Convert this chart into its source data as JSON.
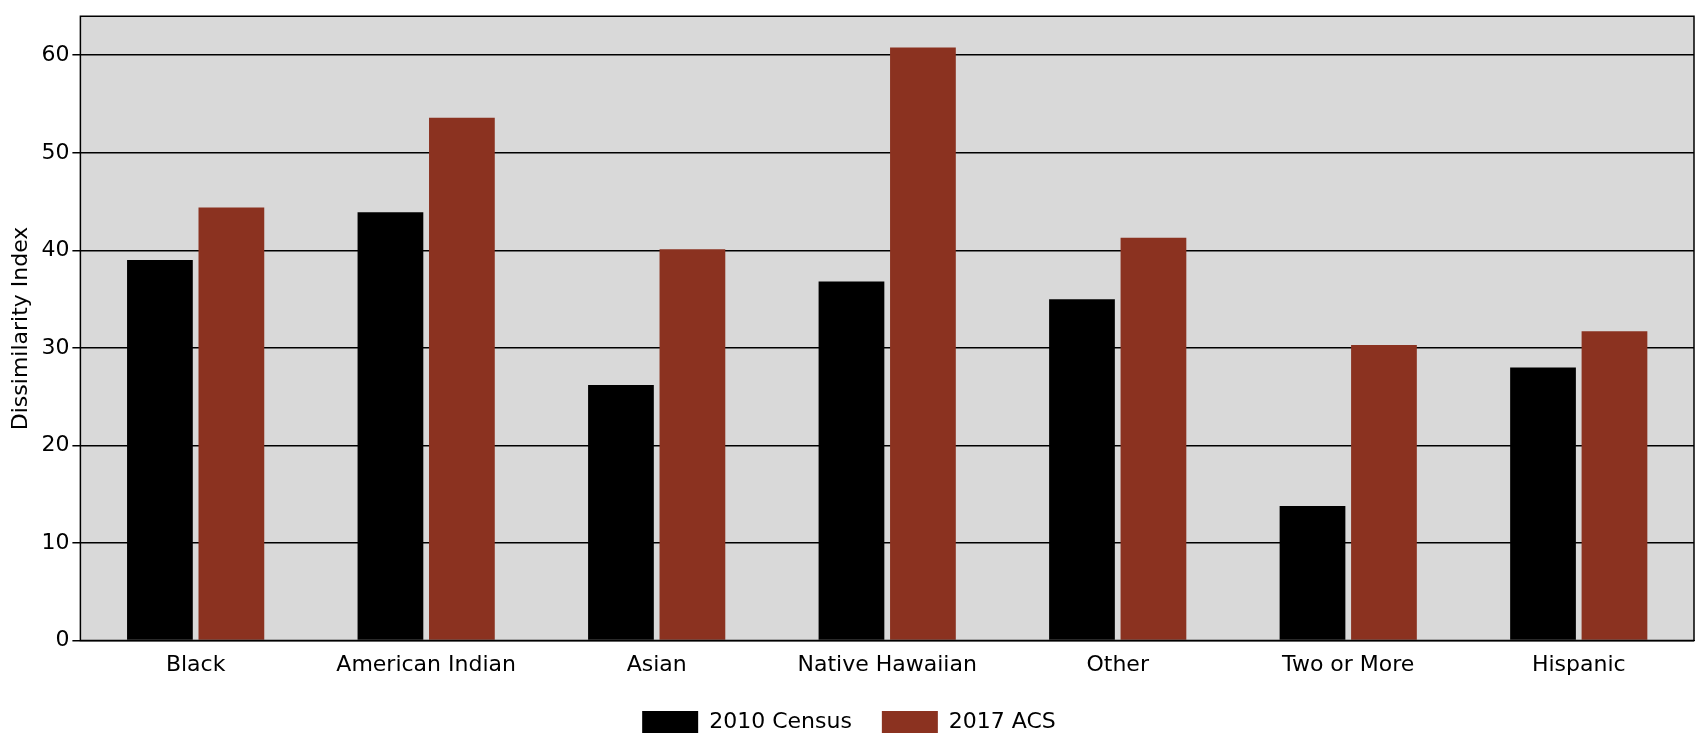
{
  "chart_data": {
    "type": "bar",
    "ylabel": "Dissimilarity Index",
    "categories": [
      "Black",
      "American Indian",
      "Asian",
      "Native Hawaiian",
      "Other",
      "Two or More",
      "Hispanic"
    ],
    "series": [
      {
        "name": "2010 Census",
        "color": "#000000",
        "values": [
          39.0,
          43.9,
          26.2,
          36.8,
          35.0,
          13.8,
          28.0
        ]
      },
      {
        "name": "2017 ACS",
        "color": "#8b3220",
        "values": [
          44.4,
          53.6,
          40.1,
          60.8,
          41.3,
          30.3,
          31.7
        ]
      }
    ],
    "ylim": [
      0,
      64
    ],
    "yticks": [
      0,
      10,
      20,
      30,
      40,
      50,
      60
    ],
    "grid": "y",
    "legend": "bottom"
  }
}
